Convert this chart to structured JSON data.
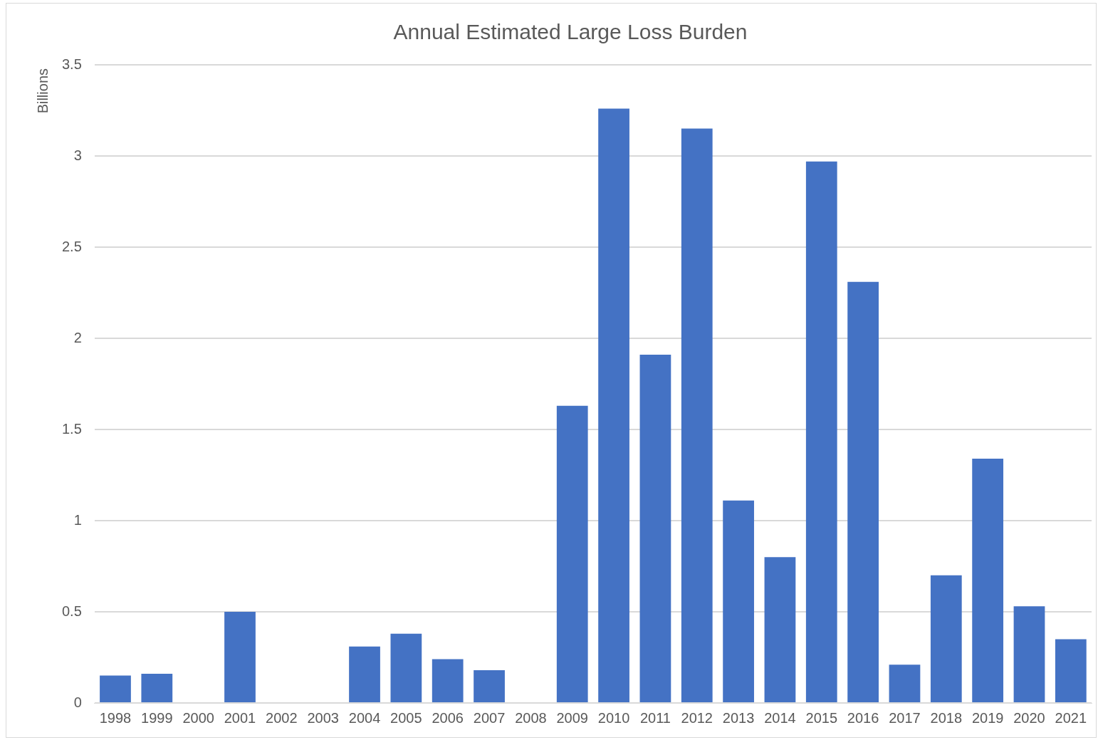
{
  "chart_data": {
    "type": "bar",
    "title": "Annual Estimated Large Loss Burden",
    "ylabel": "Billions",
    "categories": [
      "1998",
      "1999",
      "2000",
      "2001",
      "2002",
      "2003",
      "2004",
      "2005",
      "2006",
      "2007",
      "2008",
      "2009",
      "2010",
      "2011",
      "2012",
      "2013",
      "2014",
      "2015",
      "2016",
      "2017",
      "2018",
      "2019",
      "2020",
      "2021"
    ],
    "values": [
      0.15,
      0.16,
      0,
      0.5,
      0,
      0,
      0.31,
      0.38,
      0.24,
      0.18,
      0,
      1.63,
      3.26,
      1.91,
      3.15,
      1.11,
      0.8,
      2.97,
      2.31,
      0.21,
      0.7,
      1.34,
      0.53,
      0.35
    ],
    "color": "#4472c4",
    "ylim": [
      0,
      3.5
    ],
    "yticks": [
      0,
      0.5,
      1,
      1.5,
      2,
      2.5,
      3,
      3.5
    ],
    "grid": "y",
    "legend": false
  }
}
